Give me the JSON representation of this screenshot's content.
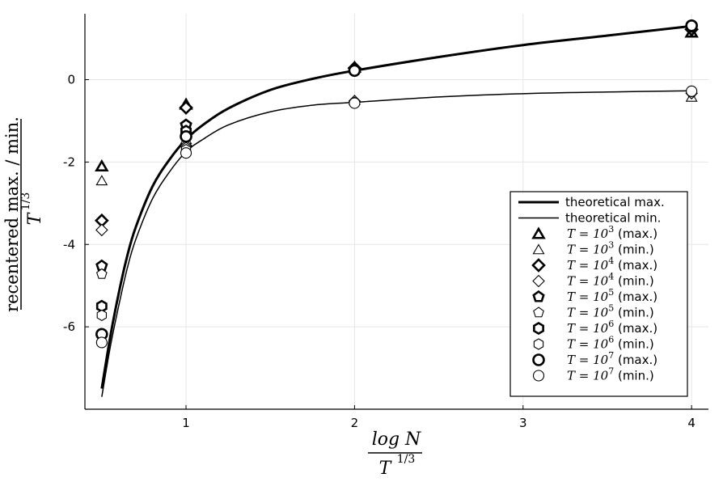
{
  "chart_data": {
    "type": "scatter",
    "title": "",
    "xlabel": {
      "numerator": "log N",
      "denominator": "T",
      "denominator_exp": "1/3"
    },
    "ylabel": {
      "numerator": "recentered max. / min.",
      "denominator": "T",
      "denominator_exp": "1/3"
    },
    "xlim": [
      0.4,
      4.1
    ],
    "ylim": [
      -8.0,
      1.6
    ],
    "xticks": [
      1,
      2,
      3,
      4
    ],
    "xtick_labels": [
      "1",
      "2",
      "3",
      "4"
    ],
    "yticks": [
      -6,
      -4,
      -2,
      0
    ],
    "ytick_labels": [
      "-6",
      "-4",
      "-2",
      "0"
    ],
    "grid": true,
    "legend_position": "bottom-right",
    "lines": [
      {
        "name": "theoretical max.",
        "style": "thick",
        "x": [
          0.5,
          0.55,
          0.6,
          0.65,
          0.7,
          0.8,
          0.9,
          1.0,
          1.1,
          1.25,
          1.5,
          1.75,
          2.0,
          2.5,
          3.0,
          3.5,
          4.0
        ],
        "y": [
          -7.5,
          -6.25,
          -5.2,
          -4.3,
          -3.6,
          -2.6,
          -1.95,
          -1.45,
          -1.1,
          -0.7,
          -0.25,
          0.02,
          0.22,
          0.55,
          0.84,
          1.07,
          1.3
        ]
      },
      {
        "name": "theoretical min.",
        "style": "thin",
        "x": [
          0.5,
          0.55,
          0.6,
          0.65,
          0.7,
          0.8,
          0.9,
          1.0,
          1.1,
          1.25,
          1.5,
          1.75,
          2.0,
          2.5,
          3.0,
          3.5,
          4.0
        ],
        "y": [
          -7.7,
          -6.5,
          -5.5,
          -4.6,
          -3.9,
          -2.9,
          -2.25,
          -1.75,
          -1.45,
          -1.1,
          -0.78,
          -0.62,
          -0.55,
          -0.42,
          -0.34,
          -0.3,
          -0.27
        ]
      }
    ],
    "series": [
      {
        "label": "$T=10^3$ (max.)",
        "base": "T = 10",
        "exp": "3",
        "suffix": "(max.)",
        "marker": "triangle",
        "weight": "bold",
        "x": [
          0.5,
          1.0,
          2.0,
          4.0
        ],
        "y": [
          -2.1,
          -0.6,
          0.3,
          1.15
        ]
      },
      {
        "label": "$T=10^3$ (min.)",
        "base": "T = 10",
        "exp": "3",
        "suffix": "(min.)",
        "marker": "triangle",
        "weight": "thin",
        "x": [
          0.5,
          1.0,
          2.0,
          4.0
        ],
        "y": [
          -2.45,
          -1.45,
          -0.5,
          -0.42
        ]
      },
      {
        "label": "$T=10^4$ (max.)",
        "base": "T = 10",
        "exp": "4",
        "suffix": "(max.)",
        "marker": "diamond",
        "weight": "bold",
        "x": [
          0.5,
          1.0,
          2.0,
          4.0
        ],
        "y": [
          -3.42,
          -0.68,
          0.28,
          1.22
        ]
      },
      {
        "label": "$T=10^4$ (min.)",
        "base": "T = 10",
        "exp": "4",
        "suffix": "(min.)",
        "marker": "diamond",
        "weight": "thin",
        "x": [
          0.5,
          1.0,
          2.0,
          4.0
        ],
        "y": [
          -3.65,
          -1.6,
          -0.52,
          -0.33
        ]
      },
      {
        "label": "$T=10^5$ (max.)",
        "base": "T = 10",
        "exp": "5",
        "suffix": "(max.)",
        "marker": "pentagon",
        "weight": "bold",
        "x": [
          0.5,
          1.0,
          2.0,
          4.0
        ],
        "y": [
          -4.52,
          -1.1,
          0.25,
          1.27
        ]
      },
      {
        "label": "$T=10^5$ (min.)",
        "base": "T = 10",
        "exp": "5",
        "suffix": "(min.)",
        "marker": "pentagon",
        "weight": "thin",
        "x": [
          0.5,
          1.0,
          2.0,
          4.0
        ],
        "y": [
          -4.72,
          -1.65,
          -0.55,
          -0.3
        ]
      },
      {
        "label": "$T=10^6$ (max.)",
        "base": "T = 10",
        "exp": "6",
        "suffix": "(max.)",
        "marker": "hexagon",
        "weight": "bold",
        "x": [
          0.5,
          1.0,
          2.0,
          4.0
        ],
        "y": [
          -5.5,
          -1.25,
          0.23,
          1.3
        ]
      },
      {
        "label": "$T=10^6$ (min.)",
        "base": "T = 10",
        "exp": "6",
        "suffix": "(min.)",
        "marker": "hexagon",
        "weight": "thin",
        "x": [
          0.5,
          1.0,
          2.0,
          4.0
        ],
        "y": [
          -5.72,
          -1.7,
          -0.56,
          -0.29
        ]
      },
      {
        "label": "$T=10^7$ (max.)",
        "base": "T = 10",
        "exp": "7",
        "suffix": "(max.)",
        "marker": "circle",
        "weight": "bold",
        "x": [
          0.5,
          1.0,
          2.0,
          4.0
        ],
        "y": [
          -6.18,
          -1.38,
          0.22,
          1.31
        ]
      },
      {
        "label": "$T=10^7$ (min.)",
        "base": "T = 10",
        "exp": "7",
        "suffix": "(min.)",
        "marker": "circle",
        "weight": "thin",
        "x": [
          0.5,
          1.0,
          2.0,
          4.0
        ],
        "y": [
          -6.38,
          -1.78,
          -0.57,
          -0.28
        ]
      }
    ]
  }
}
